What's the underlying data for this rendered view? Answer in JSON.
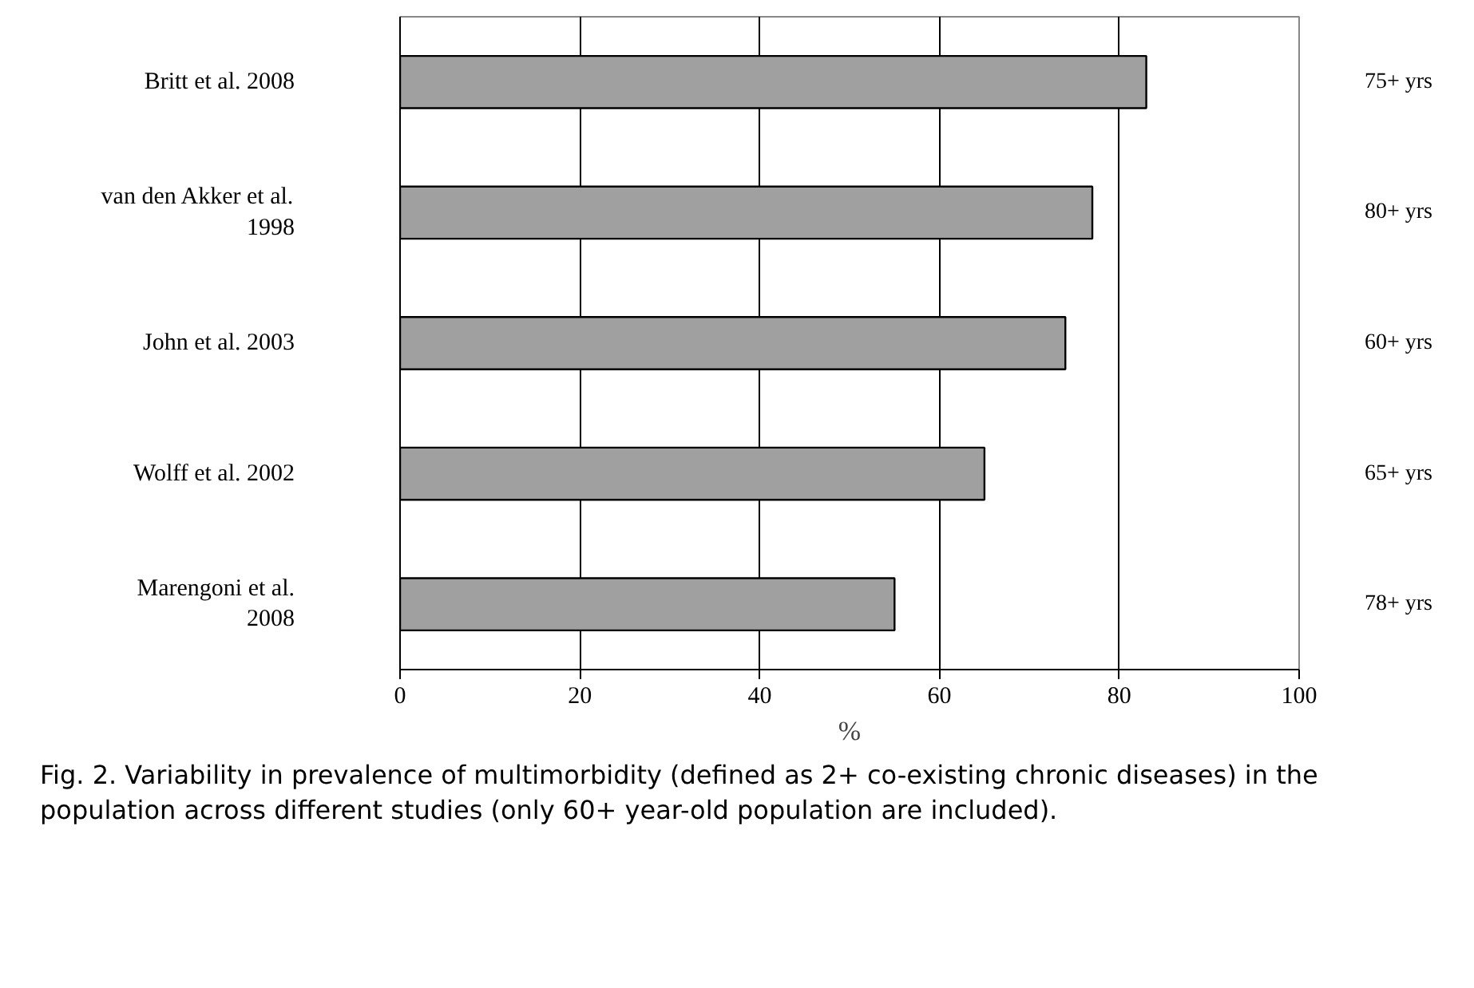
{
  "chart_data": {
    "type": "bar",
    "orientation": "horizontal",
    "xlabel": "%",
    "categories": [
      "Britt et al. 2008",
      "van den Akker et al. 1998",
      "John et al. 2003",
      "Wolff et al. 2002",
      "Marengoni et al. 2008"
    ],
    "values": [
      83,
      77,
      74,
      65,
      55
    ],
    "color": "#a0a0a0",
    "xlim": [
      0,
      100
    ],
    "xticks": [
      0,
      20,
      40,
      60,
      80,
      100
    ],
    "grid": "x",
    "annotations": [
      "75+ yrs",
      "80+ yrs",
      "60+ yrs",
      "65+ yrs",
      "78+ yrs",
      "Fig. 2. Variability in prevalence of multimorbidity (defined as 2+ co-existing chronic diseases) in the population across different studies (only 60+ year-old population are included)."
    ]
  }
}
